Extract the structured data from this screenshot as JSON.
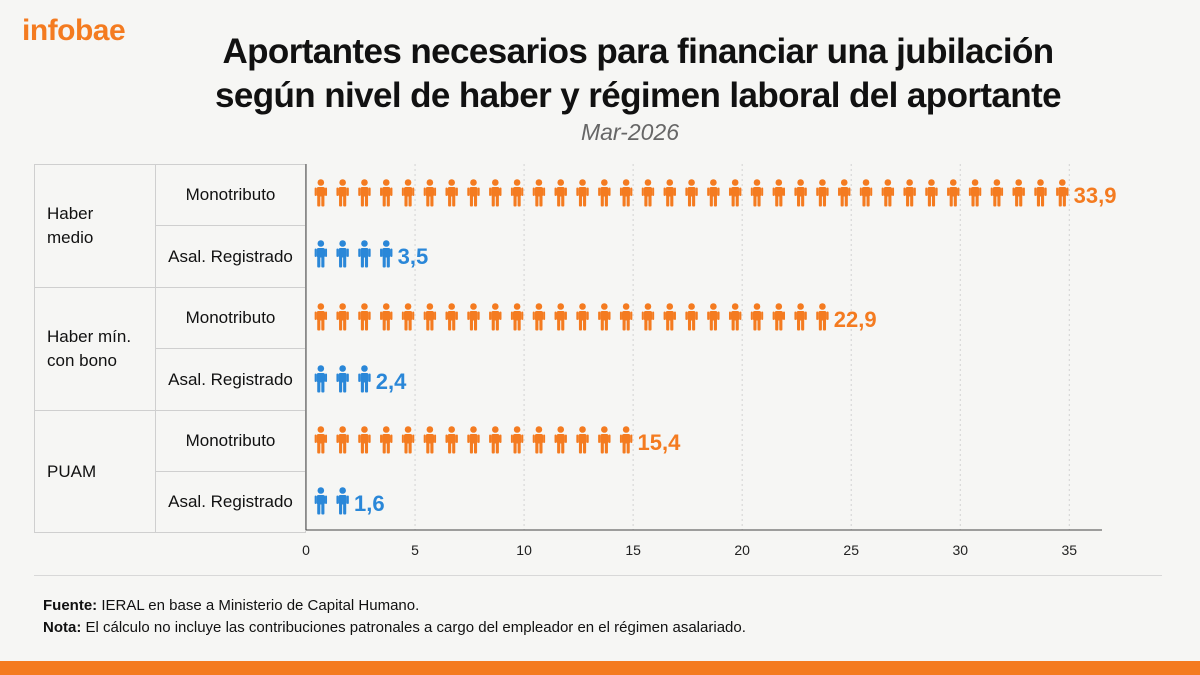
{
  "brand": {
    "logo_text": "infobae",
    "accent": "#f47b20"
  },
  "header": {
    "title_line1": "Aportantes necesarios para financiar una jubilación",
    "title_line2": "según nivel de haber y régimen laboral del aportante",
    "subtitle": "Mar-2026"
  },
  "groups": [
    {
      "label": "Haber\nmedio",
      "rows": [
        "Monotributo",
        "Asal. Registrado"
      ]
    },
    {
      "label": "Haber mín.\ncon bono",
      "rows": [
        "Monotributo",
        "Asal. Registrado"
      ]
    },
    {
      "label": "PUAM",
      "rows": [
        "Monotributo",
        "Asal. Registrado"
      ]
    }
  ],
  "chart_data": {
    "type": "bar",
    "style": "pictogram",
    "categories": [
      "Haber medio - Monotributo",
      "Haber medio - Asal. Registrado",
      "Haber mín. con bono - Monotributo",
      "Haber mín. con bono - Asal. Registrado",
      "PUAM - Monotributo",
      "PUAM - Asal. Registrado"
    ],
    "values": [
      33.9,
      3.5,
      22.9,
      2.4,
      15.4,
      1.6
    ],
    "value_labels": [
      "33,9",
      "3,5",
      "22,9",
      "2,4",
      "15,4",
      "1,6"
    ],
    "icon_counts": [
      35,
      4,
      24,
      3,
      15,
      2
    ],
    "colors": [
      "#f47b20",
      "#2a87d8",
      "#f47b20",
      "#2a87d8",
      "#f47b20",
      "#2a87d8"
    ],
    "icon": "person-icon",
    "xlim": [
      0,
      36.5
    ],
    "xticks": [
      0,
      5,
      10,
      15,
      20,
      25,
      30,
      35
    ],
    "xtick_labels": [
      "0",
      "5",
      "10",
      "15",
      "20",
      "25",
      "30",
      "35"
    ],
    "grid": "vertical dashed"
  },
  "footer": {
    "source_label": "Fuente:",
    "source_text": " IERAL en base a Ministerio de Capital Humano.",
    "note_label": "Nota:",
    "note_text": " El cálculo no incluye las contribuciones patronales a cargo del empleador en el régimen asalariado."
  }
}
